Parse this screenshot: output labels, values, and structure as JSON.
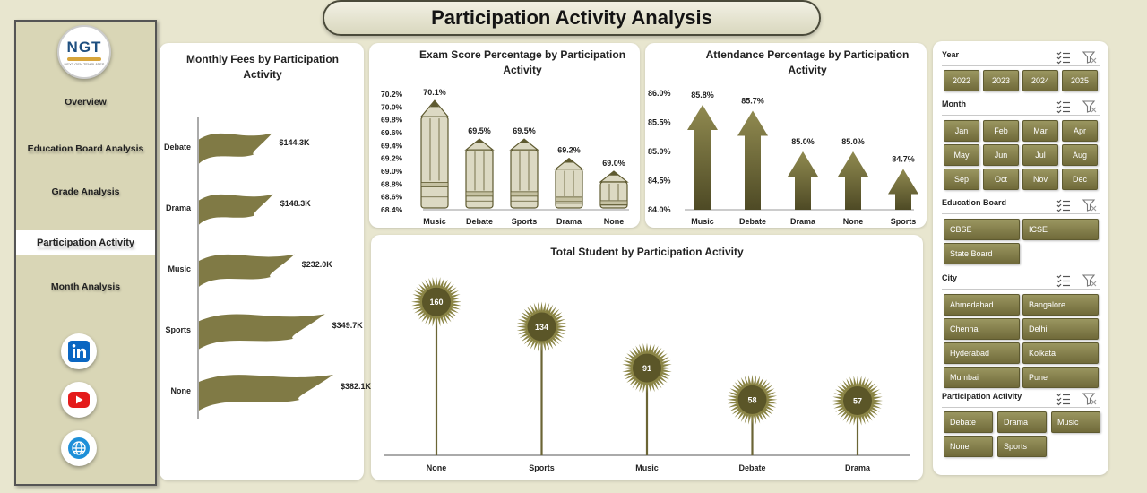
{
  "title": "Participation Activity Analysis",
  "logo": {
    "text": "NGT",
    "tagline": "NEXT GEN TEMPLATES"
  },
  "nav": [
    {
      "label": "Overview"
    },
    {
      "label": "Education Board Analysis"
    },
    {
      "label": "Grade Analysis"
    },
    {
      "label": "Participation Activity",
      "active": true
    },
    {
      "label": "Month Analysis"
    }
  ],
  "social": [
    {
      "icon": "linkedin-icon",
      "color": "#0a66c2"
    },
    {
      "icon": "youtube-icon",
      "color": "#e41b1b"
    },
    {
      "icon": "globe-icon",
      "color": "#1d8fd8"
    }
  ],
  "colors": {
    "olive": "#807a45",
    "olive_dark": "#5e5a30",
    "pencil": "#dcd9c3",
    "background": "#e8e6cf"
  },
  "chart_data": [
    {
      "type": "bar",
      "orientation": "horizontal",
      "title": "Monthly Fees by Participation Activity",
      "categories": [
        "Debate",
        "Drama",
        "Music",
        "Sports",
        "None"
      ],
      "values": [
        144.3,
        148.3,
        232.0,
        349.7,
        382.1
      ],
      "labels": [
        "$144.3K",
        "$148.3K",
        "$232.0K",
        "$349.7K",
        "$382.1K"
      ]
    },
    {
      "type": "bar",
      "title": "Exam Score Percentage by Participation Activity",
      "categories": [
        "Music",
        "Debate",
        "Sports",
        "Drama",
        "None"
      ],
      "values": [
        70.1,
        69.5,
        69.5,
        69.2,
        69.0
      ],
      "labels": [
        "70.1%",
        "69.5%",
        "69.5%",
        "69.2%",
        "69.0%"
      ],
      "yticks": [
        "70.2%",
        "70.0%",
        "69.8%",
        "69.6%",
        "69.4%",
        "69.2%",
        "69.0%",
        "68.8%",
        "68.6%",
        "68.4%"
      ],
      "ylim": [
        68.4,
        70.2
      ]
    },
    {
      "type": "bar",
      "title": "Attendance Percentage by Participation Activity",
      "categories": [
        "Music",
        "Debate",
        "Drama",
        "None",
        "Sports"
      ],
      "values": [
        85.8,
        85.7,
        85.0,
        85.0,
        84.7
      ],
      "labels": [
        "85.8%",
        "85.7%",
        "85.0%",
        "85.0%",
        "84.7%"
      ],
      "yticks": [
        "86.0%",
        "85.5%",
        "85.0%",
        "84.5%",
        "84.0%"
      ],
      "ylim": [
        84.0,
        86.0
      ]
    },
    {
      "type": "scatter",
      "title": "Total Student by Participation Activity",
      "categories": [
        "None",
        "Sports",
        "Music",
        "Debate",
        "Drama"
      ],
      "values": [
        160,
        134,
        91,
        58,
        57
      ],
      "labels": [
        "160",
        "134",
        "91",
        "58",
        "57"
      ]
    }
  ],
  "slicers": [
    {
      "title": "Year",
      "cols": 4,
      "items": [
        "2022",
        "2023",
        "2024",
        "2025"
      ]
    },
    {
      "title": "Month",
      "cols": 4,
      "items": [
        "Jan",
        "Feb",
        "Mar",
        "Apr",
        "May",
        "Jun",
        "Jul",
        "Aug",
        "Sep",
        "Oct",
        "Nov",
        "Dec"
      ]
    },
    {
      "title": "Education Board",
      "cols": 2,
      "items": [
        "CBSE",
        "ICSE",
        "State Board"
      ]
    },
    {
      "title": "City",
      "cols": 2,
      "items": [
        "Ahmedabad",
        "Bangalore",
        "Chennai",
        "Delhi",
        "Hyderabad",
        "Kolkata",
        "Mumbai",
        "Pune"
      ]
    },
    {
      "title": "Participation Activity",
      "cols": 3,
      "items": [
        "Debate",
        "Drama",
        "Music",
        "None",
        "Sports"
      ]
    }
  ]
}
